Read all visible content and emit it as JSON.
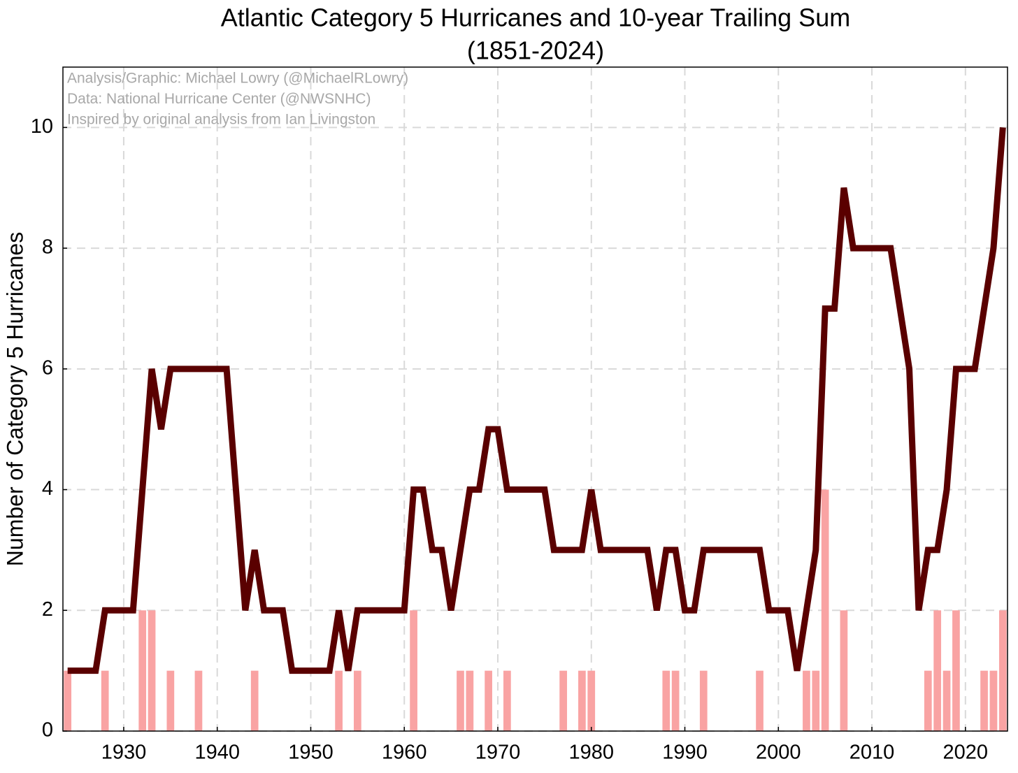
{
  "chart_data": {
    "type": "bar",
    "title": "Atlantic Category 5 Hurricanes and 10-year Trailing Sum",
    "subtitle": "(1851-2024)",
    "y_label": "Number of Category 5 Hurricanes",
    "annotations": [
      "Analysis/Graphic: Michael Lowry (@MichaelRLowry)",
      "Data: National Hurricane Center (@NWSNHC)",
      "Inspired by original analysis from Ian Livingston"
    ],
    "x": [
      1924,
      1925,
      1926,
      1927,
      1928,
      1929,
      1930,
      1931,
      1932,
      1933,
      1934,
      1935,
      1936,
      1937,
      1938,
      1939,
      1940,
      1941,
      1942,
      1943,
      1944,
      1945,
      1946,
      1947,
      1948,
      1949,
      1950,
      1951,
      1952,
      1953,
      1954,
      1955,
      1956,
      1957,
      1958,
      1959,
      1960,
      1961,
      1962,
      1963,
      1964,
      1965,
      1966,
      1967,
      1968,
      1969,
      1970,
      1971,
      1972,
      1973,
      1974,
      1975,
      1976,
      1977,
      1978,
      1979,
      1980,
      1981,
      1982,
      1983,
      1984,
      1985,
      1986,
      1987,
      1988,
      1989,
      1990,
      1991,
      1992,
      1993,
      1994,
      1995,
      1996,
      1997,
      1998,
      1999,
      2000,
      2001,
      2002,
      2003,
      2004,
      2005,
      2006,
      2007,
      2008,
      2009,
      2010,
      2011,
      2012,
      2013,
      2014,
      2015,
      2016,
      2017,
      2018,
      2019,
      2020,
      2021,
      2022,
      2023,
      2024
    ],
    "series": [
      {
        "type": "bar",
        "color": "#f9a3a3",
        "values": [
          1,
          0,
          0,
          0,
          1,
          0,
          0,
          0,
          2,
          2,
          0,
          1,
          0,
          0,
          1,
          0,
          0,
          0,
          0,
          0,
          1,
          0,
          0,
          0,
          0,
          0,
          0,
          0,
          0,
          1,
          0,
          1,
          0,
          0,
          0,
          0,
          0,
          2,
          0,
          0,
          0,
          0,
          1,
          1,
          0,
          1,
          0,
          1,
          0,
          0,
          0,
          0,
          0,
          1,
          0,
          1,
          1,
          0,
          0,
          0,
          0,
          0,
          0,
          0,
          1,
          1,
          0,
          0,
          1,
          0,
          0,
          0,
          0,
          0,
          1,
          0,
          0,
          0,
          0,
          1,
          1,
          4,
          0,
          2,
          0,
          0,
          0,
          0,
          0,
          0,
          0,
          0,
          1,
          2,
          1,
          2,
          0,
          0,
          1,
          1,
          2
        ]
      },
      {
        "type": "line",
        "color": "#5a0000",
        "values": [
          1,
          1,
          1,
          1,
          2,
          2,
          2,
          2,
          4,
          6,
          5,
          6,
          6,
          6,
          6,
          6,
          6,
          6,
          4,
          2,
          3,
          2,
          2,
          2,
          1,
          1,
          1,
          1,
          1,
          2,
          1,
          2,
          2,
          2,
          2,
          2,
          2,
          4,
          4,
          3,
          3,
          2,
          3,
          4,
          4,
          5,
          5,
          4,
          4,
          4,
          4,
          4,
          3,
          3,
          3,
          3,
          4,
          3,
          3,
          3,
          3,
          3,
          3,
          2,
          3,
          3,
          2,
          2,
          3,
          3,
          3,
          3,
          3,
          3,
          3,
          2,
          2,
          2,
          1,
          2,
          3,
          7,
          7,
          9,
          8,
          8,
          8,
          8,
          8,
          7,
          6,
          2,
          3,
          3,
          4,
          6,
          6,
          6,
          7,
          8,
          10
        ]
      }
    ],
    "xlim": [
      1923.5,
      2024.5
    ],
    "xticks": [
      1930,
      1940,
      1950,
      1960,
      1970,
      1980,
      1990,
      2000,
      2010,
      2020
    ],
    "ylim": [
      0,
      11
    ],
    "yticks": [
      0,
      2,
      4,
      6,
      8,
      10
    ],
    "grid": true
  }
}
